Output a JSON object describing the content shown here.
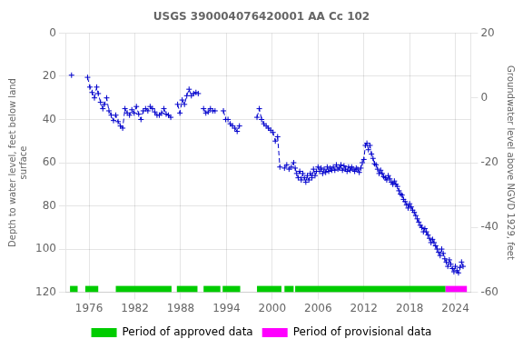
{
  "chart_data": {
    "type": "line",
    "title": "USGS 390004076420001 AA Cc 102",
    "ylabel": "Depth to water level, feet below land\nsurface",
    "y2label": "Groundwater level above NGVD 1929, feet",
    "xlim": [
      1973.0,
      2026.0
    ],
    "xticks": [
      1976,
      1982,
      1988,
      1994,
      2000,
      2006,
      2012,
      2018,
      2024
    ],
    "ylim": [
      120,
      0
    ],
    "yticks": [
      0,
      20,
      40,
      60,
      80,
      100,
      120
    ],
    "y2lim": [
      -60,
      20
    ],
    "y2ticks": [
      20,
      0,
      -20,
      -40,
      -60
    ],
    "grid": true,
    "legend": "bottom",
    "x": [
      1973.7,
      null,
      1975.8,
      1976.1,
      1976.4,
      1976.7,
      1977.0,
      1977.2,
      1977.5,
      1977.8,
      1978.0,
      1978.3,
      1978.6,
      1978.9,
      1979.2,
      1979.5,
      1979.8,
      1980.1,
      1980.4,
      1980.7,
      1981.0,
      1981.3,
      1981.6,
      1981.9,
      1982.2,
      1982.5,
      1982.8,
      1983.1,
      1983.4,
      1983.7,
      1984.0,
      1984.3,
      1984.6,
      1984.9,
      1985.2,
      1985.5,
      1985.8,
      1986.1,
      1986.4,
      1986.7,
      null,
      1987.6,
      1987.9,
      1988.2,
      1988.5,
      1988.8,
      1989.1,
      1989.4,
      1989.7,
      1990.0,
      1990.3,
      null,
      1991.0,
      1991.3,
      1991.6,
      1991.9,
      1992.2,
      1992.5,
      null,
      1993.6,
      1993.9,
      1994.2,
      1994.5,
      1994.8,
      1995.1,
      1995.4,
      1995.7,
      null,
      1998.0,
      1998.3,
      1998.6,
      1998.9,
      1999.2,
      1999.5,
      1999.8,
      2000.1,
      2000.4,
      2000.7,
      2001.0,
      null,
      2001.6,
      2001.9,
      2002.2,
      2002.5,
      2002.8,
      null,
      2003.0,
      2003.2,
      2003.4,
      2003.6,
      2003.8,
      2004.0,
      2004.2,
      2004.4,
      2004.6,
      2004.8,
      2005.0,
      2005.2,
      2005.4,
      2005.6,
      2005.8,
      2006.0,
      2006.2,
      2006.4,
      2006.6,
      2006.8,
      2007.0,
      2007.2,
      2007.4,
      2007.6,
      2007.8,
      2008.0,
      2008.2,
      2008.4,
      2008.6,
      2008.8,
      2009.0,
      2009.2,
      2009.4,
      2009.6,
      2009.8,
      2010.0,
      2010.2,
      2010.4,
      2010.6,
      2010.8,
      2011.0,
      2011.2,
      2011.4,
      2011.6,
      2011.8,
      2012.0,
      2012.2,
      2012.4,
      2012.6,
      2012.8,
      2013.0,
      2013.2,
      2013.4,
      2013.6,
      2013.8,
      2014.0,
      2014.2,
      2014.4,
      2014.6,
      2014.8,
      2015.0,
      2015.2,
      2015.4,
      2015.6,
      2015.8,
      2016.0,
      2016.2,
      2016.4,
      2016.6,
      2016.8,
      2017.0,
      2017.2,
      2017.4,
      2017.6,
      2017.8,
      2018.0,
      2018.2,
      2018.4,
      2018.6,
      2018.8,
      2019.0,
      2019.2,
      2019.4,
      2019.6,
      2019.8,
      2020.0,
      2020.2,
      2020.4,
      2020.6,
      2020.8,
      2021.0,
      2021.2,
      2021.4,
      2021.6,
      2021.8,
      2022.0,
      2022.2,
      2022.4,
      2022.6,
      2022.8,
      2023.0,
      2023.2,
      2023.4,
      2023.6,
      2023.8,
      2024.0,
      2024.2,
      2024.4,
      2024.6,
      2024.8,
      2025.0
    ],
    "series": [
      {
        "color": "#0000cc",
        "marker": "+",
        "line_style": "--",
        "values": [
          19.5,
          null,
          20.5,
          25.0,
          27.5,
          30.0,
          25.0,
          28.0,
          32.0,
          35.0,
          33.0,
          30.0,
          36.0,
          38.0,
          40.5,
          38.0,
          41.0,
          43.0,
          44.0,
          35.0,
          37.0,
          38.0,
          35.5,
          37.0,
          34.0,
          37.5,
          40.0,
          36.0,
          35.0,
          36.0,
          34.0,
          35.0,
          36.5,
          38.0,
          38.0,
          37.0,
          35.0,
          37.5,
          38.0,
          39.0,
          null,
          33.0,
          37.0,
          31.0,
          33.0,
          29.0,
          26.0,
          29.0,
          28.0,
          27.5,
          28.0,
          null,
          35.0,
          37.0,
          36.5,
          35.0,
          36.0,
          36.0,
          null,
          36.0,
          40.0,
          40.0,
          42.0,
          43.0,
          44.0,
          45.5,
          43.0,
          null,
          39.0,
          35.0,
          40.0,
          42.0,
          43.0,
          44.0,
          45.0,
          46.0,
          50.0,
          48.0,
          62.0,
          null,
          62.5,
          61.0,
          63.0,
          62.0,
          60.0,
          null,
          62.5,
          65.0,
          67.0,
          64.0,
          68.0,
          65.0,
          67.0,
          69.0,
          66.0,
          68.0,
          65.0,
          67.0,
          63.0,
          66.0,
          64.0,
          62.0,
          64.0,
          62.5,
          65.0,
          63.0,
          64.5,
          62.0,
          64.0,
          62.5,
          63.5,
          62.0,
          63.5,
          61.0,
          63.0,
          62.5,
          61.0,
          63.5,
          61.5,
          63.0,
          64.0,
          62.0,
          63.5,
          62.0,
          63.0,
          64.0,
          62.5,
          63.0,
          64.5,
          62.5,
          60.0,
          58.5,
          52.0,
          51.0,
          54.0,
          52.0,
          56.0,
          58.0,
          60.5,
          61.0,
          63.0,
          65.0,
          63.5,
          65.0,
          66.5,
          67.0,
          68.0,
          66.0,
          67.5,
          69.0,
          70.0,
          68.5,
          70.0,
          71.0,
          73.0,
          74.5,
          75.0,
          77.0,
          78.0,
          79.5,
          81.0,
          79.0,
          80.5,
          82.0,
          83.0,
          84.5,
          86.0,
          87.5,
          89.0,
          90.0,
          92.0,
          90.5,
          92.0,
          93.5,
          95.0,
          97.0,
          95.5,
          97.0,
          98.5,
          100.0,
          101.5,
          103.0,
          100.0,
          102.0,
          104.5,
          106.0,
          108.0,
          105.0,
          107.0,
          109.0,
          110.5,
          108.0,
          110.0,
          111.0,
          108.5,
          106.0,
          108.0
        ]
      }
    ],
    "periods": [
      {
        "name": "Period of approved data",
        "color": "#00cc00",
        "ranges": [
          [
            1973.5,
            1974.5
          ],
          [
            1975.5,
            1977.2
          ],
          [
            1979.5,
            1986.8
          ],
          [
            1987.5,
            1990.2
          ],
          [
            1991.0,
            1993.2
          ],
          [
            1993.5,
            1995.8
          ],
          [
            1998.0,
            2001.2
          ],
          [
            2001.6,
            2002.8
          ],
          [
            2003.0,
            2022.7
          ]
        ]
      },
      {
        "name": "Period of provisional data",
        "color": "#ff00ff",
        "ranges": [
          [
            2022.7,
            2025.5
          ]
        ]
      }
    ]
  }
}
